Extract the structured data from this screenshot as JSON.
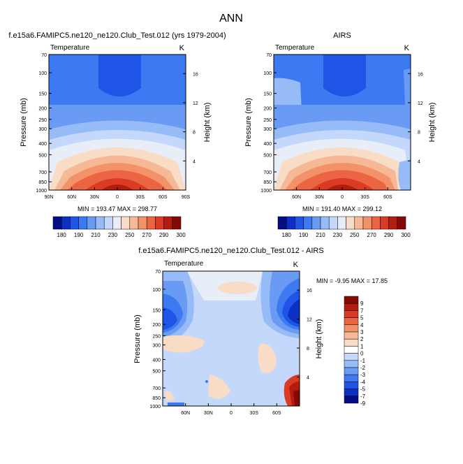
{
  "title": "ANN",
  "chart_data": [
    {
      "type": "heatmap",
      "panel": "model",
      "title": "f.e15a6.FAMIPC5.ne120_ne120.Club_Test.012 (yrs 1979-2004)",
      "variable": "Temperature",
      "units": "K",
      "ylabel": "Pressure (mb)",
      "y2label": "Height (km)",
      "y_ticks": [
        70,
        100,
        150,
        200,
        250,
        300,
        400,
        500,
        700,
        850,
        1000
      ],
      "y2_ticks": [
        16,
        12,
        8,
        4
      ],
      "x_ticks": [
        "90N",
        "60N",
        "30N",
        "0",
        "30S",
        "60S",
        "90S"
      ],
      "x_tick_values": [
        90,
        60,
        30,
        0,
        -30,
        -60,
        -90
      ],
      "xlim": [
        90,
        -90
      ],
      "ylim": [
        1000,
        70
      ],
      "min": 193.47,
      "max": 298.77,
      "stats_text": "MIN = 193.47  MAX = 298.77",
      "colorbar_levels": [
        180,
        185,
        190,
        200,
        210,
        220,
        230,
        240,
        250,
        260,
        270,
        280,
        290,
        295,
        300
      ],
      "colorbar_labels": [
        "180",
        "190",
        "210",
        "230",
        "250",
        "270",
        "290",
        "300"
      ]
    },
    {
      "type": "heatmap",
      "panel": "obs",
      "title": "AIRS",
      "variable": "Temperature",
      "units": "K",
      "ylabel": "Pressure (mb)",
      "y2label": "Height (km)",
      "y_ticks": [
        70,
        100,
        150,
        200,
        250,
        300,
        400,
        500,
        700,
        850,
        1000
      ],
      "y2_ticks": [
        16,
        12,
        8,
        4
      ],
      "x_ticks": [
        "60N",
        "30N",
        "0",
        "30S",
        "60S"
      ],
      "x_tick_values": [
        60,
        30,
        0,
        -30,
        -60
      ],
      "xlim": [
        90,
        -90
      ],
      "ylim": [
        1000,
        70
      ],
      "min": 191.4,
      "max": 299.12,
      "stats_text": "MIN = 191.40  MAX = 299.12",
      "colorbar_levels": [
        180,
        185,
        190,
        200,
        210,
        220,
        230,
        240,
        250,
        260,
        270,
        280,
        290,
        295,
        300
      ],
      "colorbar_labels": [
        "180",
        "190",
        "210",
        "230",
        "250",
        "270",
        "290",
        "300"
      ]
    },
    {
      "type": "heatmap",
      "panel": "difference",
      "title": "f.e15a6.FAMIPC5.ne120_ne120.Club_Test.012 - AIRS",
      "variable": "Temperature",
      "units": "K",
      "ylabel": "Pressure (mb)",
      "y2label": "Height (km)",
      "y_ticks": [
        70,
        100,
        150,
        200,
        250,
        300,
        400,
        500,
        700,
        850,
        1000
      ],
      "y2_ticks": [
        16,
        12,
        8,
        4
      ],
      "x_ticks": [
        "60N",
        "30N",
        "0",
        "30S",
        "60S"
      ],
      "x_tick_values": [
        60,
        30,
        0,
        -30,
        -60
      ],
      "xlim": [
        90,
        -90
      ],
      "ylim": [
        1000,
        70
      ],
      "min": -9.95,
      "max": 17.85,
      "stats_text": "MIN =  -9.95  MAX =  17.85",
      "colorbar_labels": [
        "9",
        "7",
        "5",
        "4",
        "3",
        "2",
        "1",
        "0",
        "-1",
        "-2",
        "-3",
        "-4",
        "-5",
        "-7",
        "-9"
      ]
    }
  ],
  "colors": {
    "abs_scale": [
      "#050d84",
      "#0d2fc4",
      "#1e55e6",
      "#3d79f0",
      "#6a9bf4",
      "#96bbf6",
      "#c3d8fa",
      "#e8eef8",
      "#f8dcc6",
      "#f7b896",
      "#f39169",
      "#ec6542",
      "#da3b24",
      "#b51c10",
      "#850a05"
    ],
    "diff_scale": [
      "#850a05",
      "#b51c10",
      "#da3b24",
      "#ec6542",
      "#f39169",
      "#f7b896",
      "#f8dcc6",
      "#ffffff",
      "#c3d8fa",
      "#96bbf6",
      "#6a9bf4",
      "#3d79f0",
      "#1e55e6",
      "#0d2fc4",
      "#050d84"
    ]
  }
}
